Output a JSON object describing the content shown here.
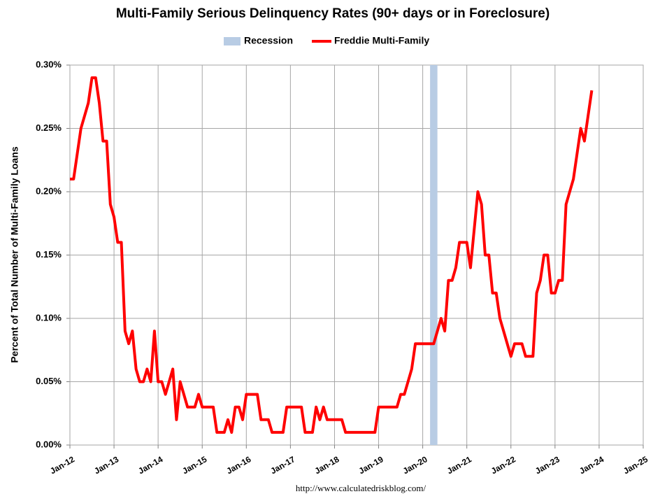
{
  "chart_data": {
    "type": "line",
    "title": "Multi-Family Serious Delinquency Rates (90+ days or in Foreclosure)",
    "y_label": "Percent of Total Number of Multi-Family Loans",
    "source": "http://www.calculatedriskblog.com/",
    "recession": {
      "name": "Recession",
      "color": "#b8cce4",
      "start": "2020-03",
      "end": "2020-04"
    },
    "x": [
      "2012-01",
      "2012-02",
      "2012-03",
      "2012-04",
      "2012-05",
      "2012-06",
      "2012-07",
      "2012-08",
      "2012-09",
      "2012-10",
      "2012-11",
      "2012-12",
      "2013-01",
      "2013-02",
      "2013-03",
      "2013-04",
      "2013-05",
      "2013-06",
      "2013-07",
      "2013-08",
      "2013-09",
      "2013-10",
      "2013-11",
      "2013-12",
      "2014-01",
      "2014-02",
      "2014-03",
      "2014-04",
      "2014-05",
      "2014-06",
      "2014-07",
      "2014-08",
      "2014-09",
      "2014-10",
      "2014-11",
      "2014-12",
      "2015-01",
      "2015-02",
      "2015-03",
      "2015-04",
      "2015-05",
      "2015-06",
      "2015-07",
      "2015-08",
      "2015-09",
      "2015-10",
      "2015-11",
      "2015-12",
      "2016-01",
      "2016-02",
      "2016-03",
      "2016-04",
      "2016-05",
      "2016-06",
      "2016-07",
      "2016-08",
      "2016-09",
      "2016-10",
      "2016-11",
      "2016-12",
      "2017-01",
      "2017-02",
      "2017-03",
      "2017-04",
      "2017-05",
      "2017-06",
      "2017-07",
      "2017-08",
      "2017-09",
      "2017-10",
      "2017-11",
      "2017-12",
      "2018-01",
      "2018-02",
      "2018-03",
      "2018-04",
      "2018-05",
      "2018-06",
      "2018-07",
      "2018-08",
      "2018-09",
      "2018-10",
      "2018-11",
      "2018-12",
      "2019-01",
      "2019-02",
      "2019-03",
      "2019-04",
      "2019-05",
      "2019-06",
      "2019-07",
      "2019-08",
      "2019-09",
      "2019-10",
      "2019-11",
      "2019-12",
      "2020-01",
      "2020-02",
      "2020-03",
      "2020-04",
      "2020-05",
      "2020-06",
      "2020-07",
      "2020-08",
      "2020-09",
      "2020-10",
      "2020-11",
      "2020-12",
      "2021-01",
      "2021-02",
      "2021-03",
      "2021-04",
      "2021-05",
      "2021-06",
      "2021-07",
      "2021-08",
      "2021-09",
      "2021-10",
      "2021-11",
      "2021-12",
      "2022-01",
      "2022-02",
      "2022-03",
      "2022-04",
      "2022-05",
      "2022-06",
      "2022-07",
      "2022-08",
      "2022-09",
      "2022-10",
      "2022-11",
      "2022-12",
      "2023-01",
      "2023-02",
      "2023-03",
      "2023-04",
      "2023-05",
      "2023-06",
      "2023-07",
      "2023-08",
      "2023-09",
      "2023-10",
      "2023-11"
    ],
    "series": [
      {
        "name": "Freddie Multi-Family",
        "color": "#ff0000",
        "values": [
          0.21,
          0.21,
          0.23,
          0.25,
          0.26,
          0.27,
          0.29,
          0.29,
          0.27,
          0.24,
          0.24,
          0.19,
          0.18,
          0.16,
          0.16,
          0.09,
          0.08,
          0.09,
          0.06,
          0.05,
          0.05,
          0.06,
          0.05,
          0.09,
          0.05,
          0.05,
          0.04,
          0.05,
          0.06,
          0.02,
          0.05,
          0.04,
          0.03,
          0.03,
          0.03,
          0.04,
          0.03,
          0.03,
          0.03,
          0.03,
          0.01,
          0.01,
          0.01,
          0.02,
          0.01,
          0.03,
          0.03,
          0.02,
          0.04,
          0.04,
          0.04,
          0.04,
          0.02,
          0.02,
          0.02,
          0.01,
          0.01,
          0.01,
          0.01,
          0.03,
          0.03,
          0.03,
          0.03,
          0.03,
          0.01,
          0.01,
          0.01,
          0.03,
          0.02,
          0.03,
          0.02,
          0.02,
          0.02,
          0.02,
          0.02,
          0.01,
          0.01,
          0.01,
          0.01,
          0.01,
          0.01,
          0.01,
          0.01,
          0.01,
          0.03,
          0.03,
          0.03,
          0.03,
          0.03,
          0.03,
          0.04,
          0.04,
          0.05,
          0.06,
          0.08,
          0.08,
          0.08,
          0.08,
          0.08,
          0.08,
          0.09,
          0.1,
          0.09,
          0.13,
          0.13,
          0.14,
          0.16,
          0.16,
          0.16,
          0.14,
          0.17,
          0.2,
          0.19,
          0.15,
          0.15,
          0.12,
          0.12,
          0.1,
          0.09,
          0.08,
          0.07,
          0.08,
          0.08,
          0.08,
          0.07,
          0.07,
          0.07,
          0.12,
          0.13,
          0.15,
          0.15,
          0.12,
          0.12,
          0.13,
          0.13,
          0.19,
          0.2,
          0.21,
          0.23,
          0.25,
          0.24,
          0.26,
          0.28
        ]
      }
    ],
    "xlim": [
      "2012-01",
      "2025-01"
    ],
    "xticks": [
      {
        "value": "2012-01",
        "label": "Jan-12"
      },
      {
        "value": "2013-01",
        "label": "Jan-13"
      },
      {
        "value": "2014-01",
        "label": "Jan-14"
      },
      {
        "value": "2015-01",
        "label": "Jan-15"
      },
      {
        "value": "2016-01",
        "label": "Jan-16"
      },
      {
        "value": "2017-01",
        "label": "Jan-17"
      },
      {
        "value": "2018-01",
        "label": "Jan-18"
      },
      {
        "value": "2019-01",
        "label": "Jan-19"
      },
      {
        "value": "2020-01",
        "label": "Jan-20"
      },
      {
        "value": "2021-01",
        "label": "Jan-21"
      },
      {
        "value": "2022-01",
        "label": "Jan-22"
      },
      {
        "value": "2023-01",
        "label": "Jan-23"
      },
      {
        "value": "2024-01",
        "label": "Jan-24"
      },
      {
        "value": "2025-01",
        "label": "Jan-25"
      }
    ],
    "ylim": [
      0,
      0.3
    ],
    "yticks": [
      {
        "value": 0,
        "label": "0.00%"
      },
      {
        "value": 0.05,
        "label": "0.05%"
      },
      {
        "value": 0.1,
        "label": "0.10%"
      },
      {
        "value": 0.15,
        "label": "0.15%"
      },
      {
        "value": 0.2,
        "label": "0.20%"
      },
      {
        "value": 0.25,
        "label": "0.25%"
      },
      {
        "value": 0.3,
        "label": "0.30%"
      }
    ],
    "grid": true
  }
}
